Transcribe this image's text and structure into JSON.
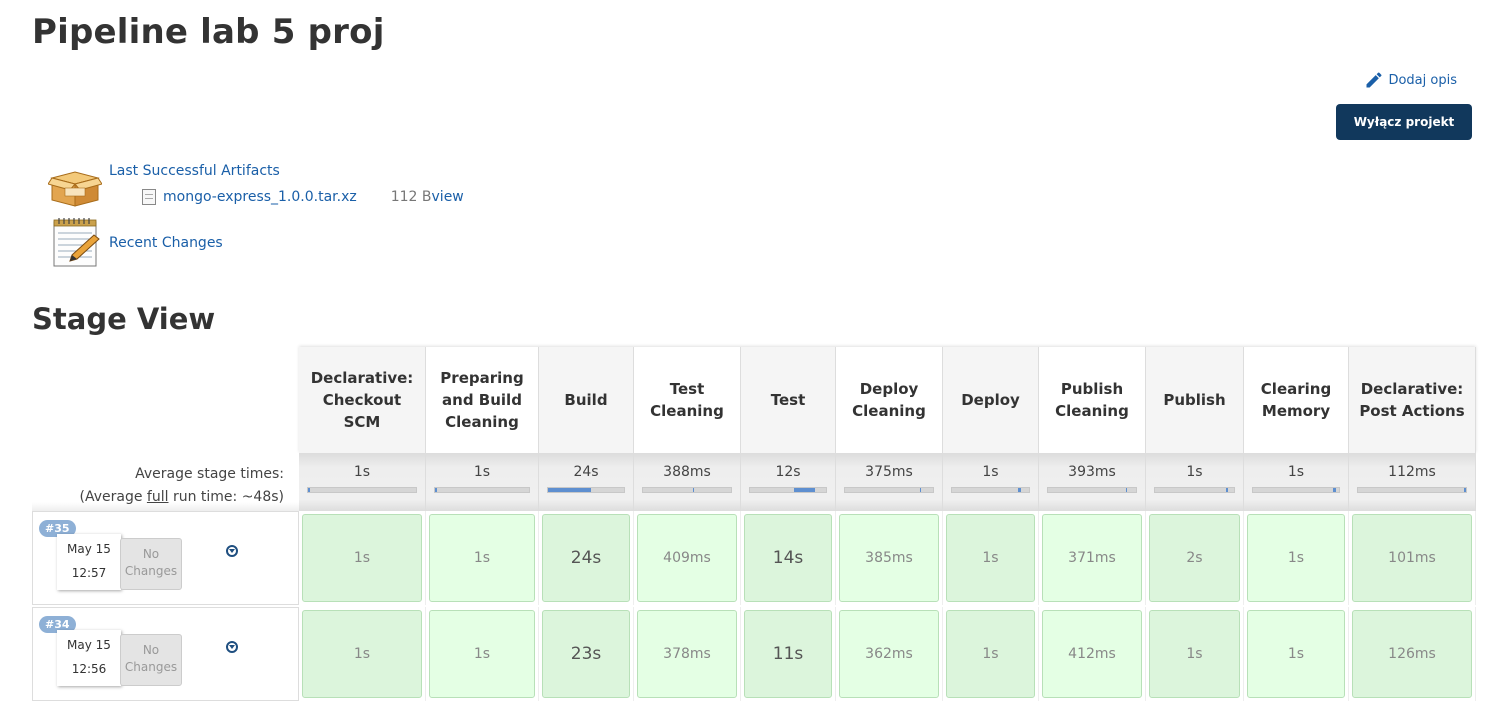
{
  "page": {
    "title": "Pipeline lab 5 proj"
  },
  "actions": {
    "add_description": "Dodaj opis",
    "disable_project": "Wyłącz projekt"
  },
  "artifacts": {
    "label": "Last Successful Artifacts",
    "file": {
      "name": "mongo-express_1.0.0.tar.xz",
      "size": "112 B",
      "view": "view"
    }
  },
  "recent_changes": {
    "label": "Recent Changes"
  },
  "stage_view": {
    "title": "Stage View",
    "average_label": "Average stage times:",
    "full_run_prefix": "(Average ",
    "full_run_word": "full",
    "full_run_suffix": " run time: ~48s)",
    "stages": [
      {
        "name": "Declarative: Checkout SCM",
        "avg": "1s",
        "bar": {
          "fill_start": 0.0,
          "fill_end": 0.02
        }
      },
      {
        "name": "Preparing and Build Cleaning",
        "avg": "1s",
        "bar": {
          "fill_start": 0.0,
          "fill_end": 0.02
        }
      },
      {
        "name": "Build",
        "avg": "24s",
        "bar": {
          "fill_start": 0.0,
          "fill_end": 0.57
        }
      },
      {
        "name": "Test Cleaning",
        "avg": "388ms",
        "bar": {
          "fill_start": 0.57,
          "fill_end": 0.58
        }
      },
      {
        "name": "Test",
        "avg": "12s",
        "bar": {
          "fill_start": 0.58,
          "fill_end": 0.85
        }
      },
      {
        "name": "Deploy Cleaning",
        "avg": "375ms",
        "bar": {
          "fill_start": 0.85,
          "fill_end": 0.86
        }
      },
      {
        "name": "Deploy",
        "avg": "1s",
        "bar": {
          "fill_start": 0.86,
          "fill_end": 0.89
        }
      },
      {
        "name": "Publish Cleaning",
        "avg": "393ms",
        "bar": {
          "fill_start": 0.89,
          "fill_end": 0.9
        }
      },
      {
        "name": "Publish",
        "avg": "1s",
        "bar": {
          "fill_start": 0.9,
          "fill_end": 0.93
        }
      },
      {
        "name": "Clearing Memory",
        "avg": "1s",
        "bar": {
          "fill_start": 0.93,
          "fill_end": 0.96
        }
      },
      {
        "name": "Declarative: Post Actions",
        "avg": "112ms",
        "bar": {
          "fill_start": 0.98,
          "fill_end": 1.0
        }
      }
    ],
    "runs": [
      {
        "id": "#35",
        "date": "May 15",
        "time": "12:57",
        "changes": "No Changes",
        "times": [
          "1s",
          "1s",
          "24s",
          "409ms",
          "14s",
          "385ms",
          "1s",
          "371ms",
          "2s",
          "1s",
          "101ms"
        ]
      },
      {
        "id": "#34",
        "date": "May 15",
        "time": "12:56",
        "changes": "No Changes",
        "times": [
          "1s",
          "1s",
          "23s",
          "378ms",
          "11s",
          "362ms",
          "1s",
          "412ms",
          "1s",
          "1s",
          "126ms"
        ]
      }
    ]
  }
}
